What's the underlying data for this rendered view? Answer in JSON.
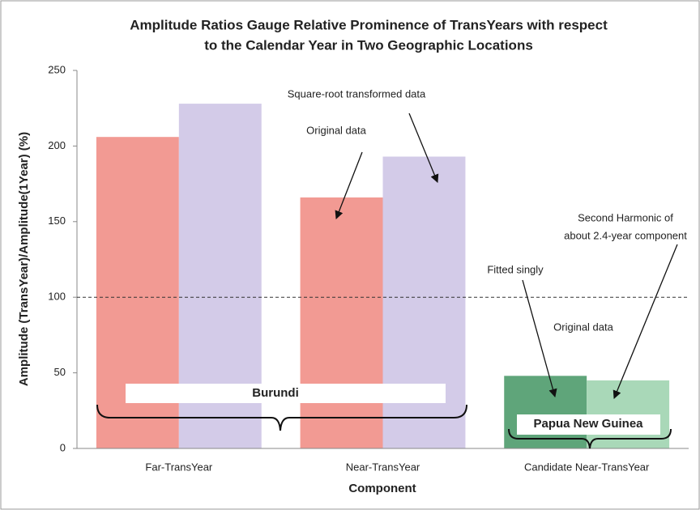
{
  "chart_data": {
    "type": "bar",
    "title": [
      "Amplitude Ratios Gauge Relative Prominence of TransYears with respect",
      "to the Calendar Year in Two Geographic Locations"
    ],
    "x_label": "Component",
    "y_label": "Amplitude (TransYear)/Amplitude(1Year)  (%)",
    "categories": [
      "Far-TransYear",
      "Near-TransYear",
      "Candidate Near-TransYear"
    ],
    "series": [
      {
        "colors": [
          "#f29a93",
          "#f29a93",
          "#5fa57a"
        ],
        "values": [
          206,
          166,
          48
        ]
      },
      {
        "colors": [
          "#d3cbe8",
          "#d3cbe8",
          "#a9d8b8"
        ],
        "values": [
          228,
          193,
          45
        ]
      }
    ],
    "ylim": [
      0,
      250
    ],
    "yticks": [
      0,
      50,
      100,
      150,
      200,
      250
    ],
    "reference_line": 100,
    "annotations": [
      {
        "text": [
          "Square-root transformed  data"
        ]
      },
      {
        "text": [
          "Original data"
        ]
      },
      {
        "text": [
          "Second Harmonic of",
          "about 2.4-year component"
        ]
      },
      {
        "text": [
          "Fitted singly"
        ]
      },
      {
        "text": [
          "Original data"
        ]
      }
    ],
    "groups": [
      "Burundi",
      "Papua New Guinea"
    ]
  }
}
